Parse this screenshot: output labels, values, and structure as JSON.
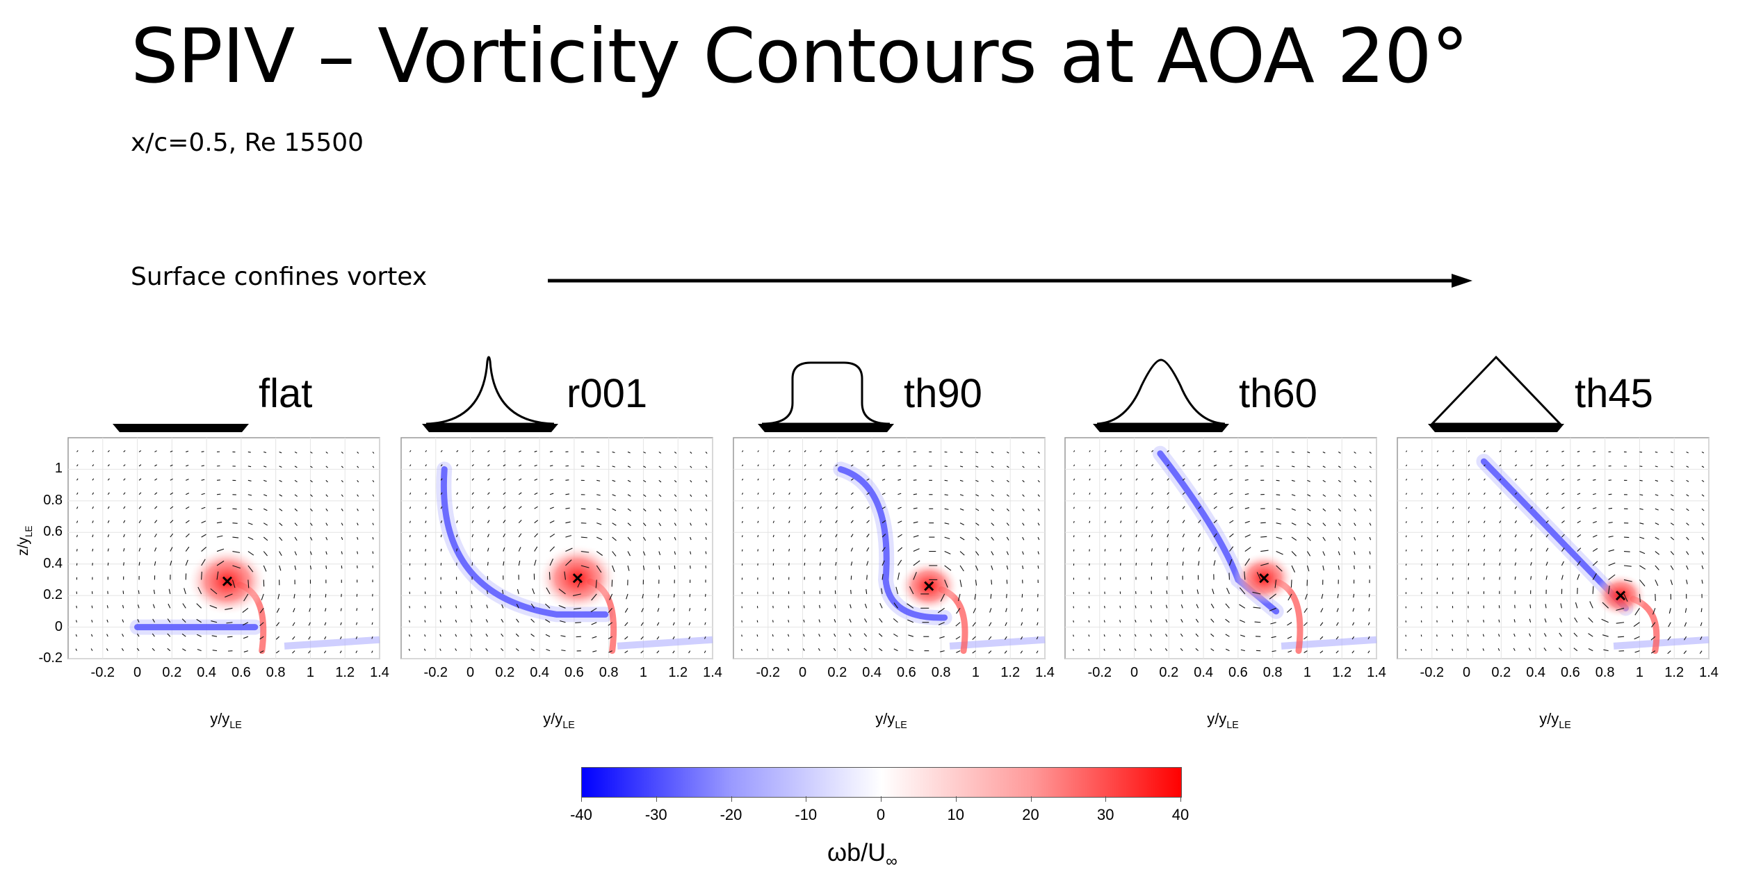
{
  "title": "SPIV – Vorticity Contours at AOA 20°",
  "subtitle": "x/c=0.5, Re 15500",
  "arrow_label": "Surface confines vortex",
  "panels": [
    {
      "name": "flat",
      "vortex_y": 0.52,
      "vortex_z": 0.29
    },
    {
      "name": "r001",
      "vortex_y": 0.62,
      "vortex_z": 0.31
    },
    {
      "name": "th90",
      "vortex_y": 0.73,
      "vortex_z": 0.26
    },
    {
      "name": "th60",
      "vortex_y": 0.75,
      "vortex_z": 0.31
    },
    {
      "name": "th45",
      "vortex_y": 0.89,
      "vortex_z": 0.2
    }
  ],
  "axes": {
    "x_ticks": [
      "-0.2",
      "0",
      "0.2",
      "0.4",
      "0.6",
      "0.8",
      "1",
      "1.2",
      "1.4"
    ],
    "x_tick_values": [
      -0.2,
      0,
      0.2,
      0.4,
      0.6,
      0.8,
      1.0,
      1.2,
      1.4
    ],
    "y_ticks": [
      "-0.2",
      "0",
      "0.2",
      "0.4",
      "0.6",
      "0.8",
      "1"
    ],
    "y_tick_values": [
      -0.2,
      0,
      0.2,
      0.4,
      0.6,
      0.8,
      1.0
    ],
    "xlim": [
      -0.4,
      1.4
    ],
    "ylim": [
      -0.2,
      1.2
    ],
    "x_label_main": "y/y",
    "x_label_sub": "LE",
    "y_label_main": "z/y",
    "y_label_sub": "LE"
  },
  "colorbar": {
    "ticks": [
      "-40",
      "-30",
      "-20",
      "-10",
      "0",
      "10",
      "20",
      "30",
      "40"
    ],
    "tick_values": [
      -40,
      -30,
      -20,
      -10,
      0,
      10,
      20,
      30,
      40
    ],
    "label_main": "ωb/U",
    "label_sub": "∞",
    "colors": {
      "negative": "#0000ff",
      "zero": "#ffffff",
      "positive": "#ff0000"
    }
  }
}
